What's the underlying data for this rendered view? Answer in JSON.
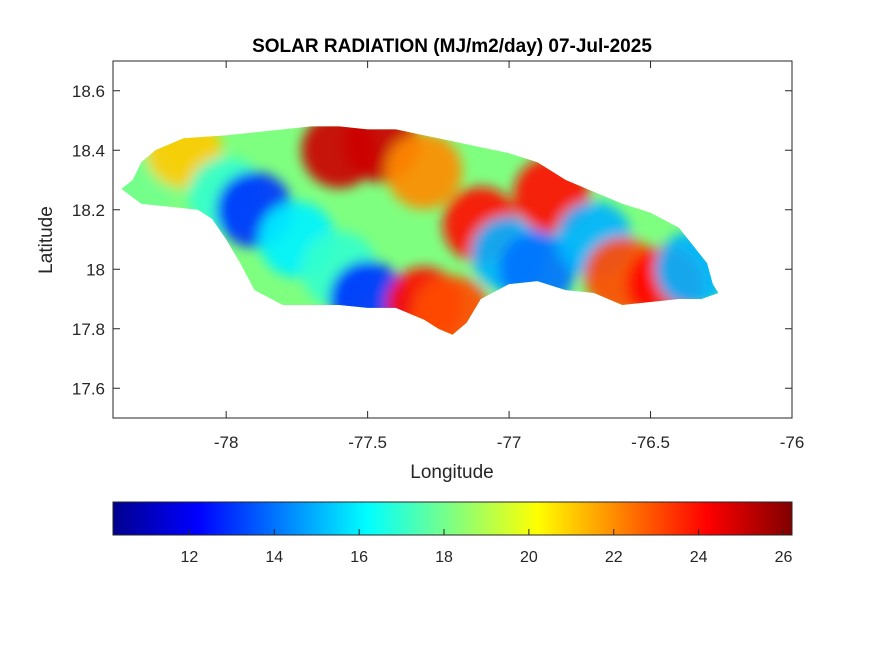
{
  "chart_data": {
    "type": "heatmap",
    "title": "SOLAR RADIATION (MJ/m2/day) 07-Jul-2025",
    "xlabel": "Longitude",
    "ylabel": "Latitude",
    "xlim": [
      -78.4,
      -76
    ],
    "ylim": [
      17.5,
      18.7
    ],
    "xticks": [
      -78,
      -77.5,
      -77,
      -76.5,
      -76
    ],
    "xtick_labels": [
      "-78",
      "-77.5",
      "-77",
      "-76.5",
      "-76"
    ],
    "yticks": [
      17.6,
      17.8,
      18,
      18.2,
      18.4,
      18.6
    ],
    "ytick_labels": [
      "17.6",
      "17.8",
      "18",
      "18.2",
      "18.4",
      "18.6"
    ],
    "grid": false,
    "colormap": "jet",
    "colorbar": {
      "orientation": "horizontal",
      "range": [
        10.2,
        26.2
      ],
      "ticks": [
        12,
        14,
        16,
        18,
        20,
        22,
        24,
        26
      ],
      "tick_labels": [
        "12",
        "14",
        "16",
        "18",
        "20",
        "22",
        "24",
        "26"
      ]
    },
    "region_outline_lonlat": [
      [
        -78.37,
        18.27
      ],
      [
        -78.33,
        18.3
      ],
      [
        -78.3,
        18.36
      ],
      [
        -78.25,
        18.4
      ],
      [
        -78.15,
        18.44
      ],
      [
        -78.0,
        18.45
      ],
      [
        -77.9,
        18.46
      ],
      [
        -77.8,
        18.47
      ],
      [
        -77.7,
        18.48
      ],
      [
        -77.6,
        18.48
      ],
      [
        -77.5,
        18.47
      ],
      [
        -77.4,
        18.47
      ],
      [
        -77.3,
        18.45
      ],
      [
        -77.2,
        18.43
      ],
      [
        -77.1,
        18.41
      ],
      [
        -77.0,
        18.39
      ],
      [
        -76.9,
        18.36
      ],
      [
        -76.8,
        18.3
      ],
      [
        -76.7,
        18.26
      ],
      [
        -76.6,
        18.22
      ],
      [
        -76.5,
        18.19
      ],
      [
        -76.4,
        18.14
      ],
      [
        -76.35,
        18.08
      ],
      [
        -76.3,
        18.02
      ],
      [
        -76.28,
        17.95
      ],
      [
        -76.26,
        17.92
      ],
      [
        -76.32,
        17.9
      ],
      [
        -76.4,
        17.9
      ],
      [
        -76.5,
        17.89
      ],
      [
        -76.6,
        17.88
      ],
      [
        -76.7,
        17.92
      ],
      [
        -76.8,
        17.93
      ],
      [
        -76.9,
        17.96
      ],
      [
        -77.0,
        17.95
      ],
      [
        -77.1,
        17.9
      ],
      [
        -77.15,
        17.82
      ],
      [
        -77.2,
        17.78
      ],
      [
        -77.25,
        17.8
      ],
      [
        -77.3,
        17.83
      ],
      [
        -77.4,
        17.87
      ],
      [
        -77.5,
        17.87
      ],
      [
        -77.6,
        17.88
      ],
      [
        -77.7,
        17.88
      ],
      [
        -77.8,
        17.88
      ],
      [
        -77.9,
        17.93
      ],
      [
        -77.95,
        18.02
      ],
      [
        -78.0,
        18.1
      ],
      [
        -78.05,
        18.17
      ],
      [
        -78.1,
        18.2
      ],
      [
        -78.2,
        18.21
      ],
      [
        -78.3,
        18.22
      ]
    ],
    "value_field_samples": [
      {
        "lon": -78.3,
        "lat": 18.3,
        "value": 18
      },
      {
        "lon": -78.15,
        "lat": 18.4,
        "value": 21
      },
      {
        "lon": -78.0,
        "lat": 18.25,
        "value": 17
      },
      {
        "lon": -77.9,
        "lat": 18.2,
        "value": 13
      },
      {
        "lon": -77.75,
        "lat": 18.1,
        "value": 16
      },
      {
        "lon": -77.6,
        "lat": 18.4,
        "value": 25
      },
      {
        "lon": -77.45,
        "lat": 18.42,
        "value": 25
      },
      {
        "lon": -77.3,
        "lat": 18.33,
        "value": 22
      },
      {
        "lon": -77.6,
        "lat": 18.0,
        "value": 17
      },
      {
        "lon": -77.5,
        "lat": 17.9,
        "value": 13
      },
      {
        "lon": -77.3,
        "lat": 17.88,
        "value": 24
      },
      {
        "lon": -77.2,
        "lat": 17.85,
        "value": 23
      },
      {
        "lon": -77.1,
        "lat": 18.15,
        "value": 24
      },
      {
        "lon": -77.0,
        "lat": 18.05,
        "value": 15
      },
      {
        "lon": -76.9,
        "lat": 18.0,
        "value": 14
      },
      {
        "lon": -76.85,
        "lat": 18.25,
        "value": 24
      },
      {
        "lon": -76.7,
        "lat": 18.1,
        "value": 15
      },
      {
        "lon": -76.6,
        "lat": 17.98,
        "value": 23
      },
      {
        "lon": -76.45,
        "lat": 17.95,
        "value": 24
      },
      {
        "lon": -76.35,
        "lat": 18.0,
        "value": 15
      }
    ]
  }
}
